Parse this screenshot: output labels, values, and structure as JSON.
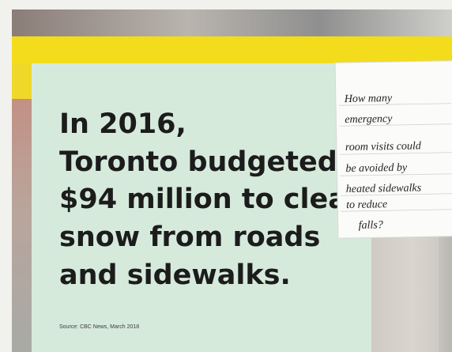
{
  "poster": {
    "headline": [
      "In 2016,",
      "Toronto budgeted",
      "$94 million to clear",
      "snow from roads",
      "and sidewalks."
    ],
    "source": "Source: CBC News, March 2018"
  },
  "note": {
    "lines": [
      "How many",
      "emergency",
      "room visits could",
      "be avoided by",
      "heated sidewalks",
      "to reduce",
      "falls?"
    ]
  }
}
